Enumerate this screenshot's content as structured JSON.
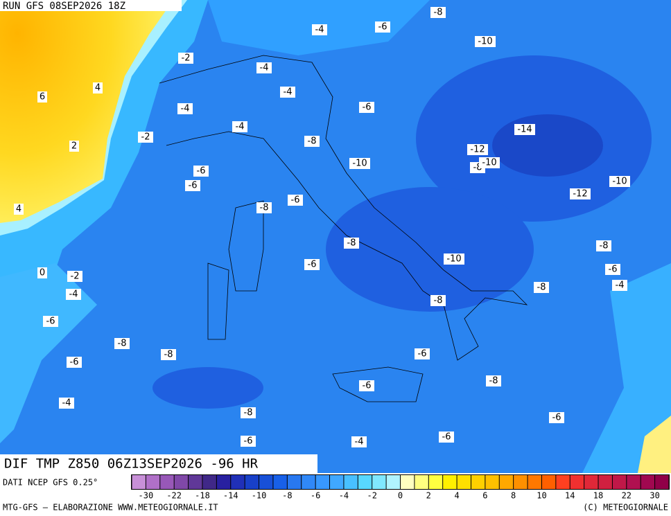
{
  "header": {
    "run": "RUN GFS 08SEP2026 18Z",
    "field": "DIF TMP Z850 06Z13SEP2026 -96 HR",
    "source": "DATI NCEP GFS 0.25°"
  },
  "contour_labels": [
    -8,
    -4,
    -6,
    -10,
    -2,
    -4,
    4,
    6,
    -4,
    -4,
    -6,
    -4,
    -14,
    -2,
    2,
    -8,
    -12,
    -10,
    -8,
    -10,
    -6,
    -10,
    -6,
    -12,
    -6,
    4,
    -8,
    -8,
    -8,
    -10,
    -6,
    -6,
    0,
    -2,
    -4,
    -8,
    -4,
    -8,
    -6,
    -8,
    -8,
    -6,
    -6,
    -8,
    -6,
    -4,
    -8,
    -6,
    -6,
    -6,
    -4
  ],
  "colorbar": {
    "colors": [
      "#c890d8",
      "#b070c8",
      "#9858b8",
      "#8048a8",
      "#603898",
      "#402888",
      "#2820a0",
      "#2030b8",
      "#1840c8",
      "#1850d8",
      "#1860e8",
      "#2878f0",
      "#3088f8",
      "#3898ff",
      "#40a8ff",
      "#48c0ff",
      "#58d8ff",
      "#80e8ff",
      "#b0f4ff",
      "#ffffc0",
      "#ffff80",
      "#ffff40",
      "#fff000",
      "#ffe000",
      "#ffd000",
      "#ffc000",
      "#ffa800",
      "#ff9000",
      "#ff7800",
      "#ff6000",
      "#ff4020",
      "#f03030",
      "#e02838",
      "#d02040",
      "#c01848",
      "#b01050",
      "#a00850",
      "#900048"
    ],
    "ticks": [
      -30,
      -22,
      -18,
      -14,
      -10,
      -8,
      -6,
      -4,
      -2,
      0,
      2,
      4,
      6,
      8,
      10,
      14,
      18,
      22,
      30
    ]
  },
  "footer": {
    "left": "MTG-GFS – ELABORAZIONE WWW.METEOGIORNALE.IT",
    "right": "(C) METEOGIORNALE"
  }
}
